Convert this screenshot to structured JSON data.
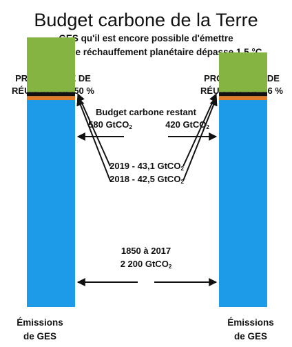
{
  "header": {
    "title": "Budget carbone de la Terre",
    "subtitle_line1": "GES qu'il est encore possible d'émettre",
    "subtitle_line2": "sans que le réchauffement planétaire dépasse 1,5 °C"
  },
  "colors": {
    "historic": "#1E9BE8",
    "year_2018": "#E07B2A",
    "year_2019": "#111111",
    "remaining": "#86B443"
  },
  "chart_data": {
    "type": "bar",
    "stacked": true,
    "unit": "GtCO2",
    "categories": [
      "PROBABILITÉ DE RÉUSSITE DE 50 %",
      "PROBABILITÉ DE RÉUSSITE DE 66 %"
    ],
    "category_lines": [
      [
        "PROBABILITÉ DE",
        "RÉUSSITE DE 50 %"
      ],
      [
        "PROBABILITÉ DE",
        "RÉUSSITE DE 66 %"
      ]
    ],
    "x_labels": [
      [
        "Émissions",
        "de GES"
      ],
      [
        "Émissions",
        "de GES"
      ]
    ],
    "series": [
      {
        "name": "1850 à 2017",
        "values": [
          2200,
          2200
        ]
      },
      {
        "name": "2018",
        "values": [
          42.5,
          42.5
        ]
      },
      {
        "name": "2019",
        "values": [
          43.1,
          43.1
        ]
      },
      {
        "name": "Budget carbone restant",
        "values": [
          580,
          420
        ]
      }
    ],
    "annotations": {
      "remaining_title": "Budget carbone restant",
      "remaining_left": "580 GtCO",
      "remaining_right": "420 GtCO",
      "line_2019": "2019 - 43,1 GtCO",
      "line_2018": "2018 - 42,5 GtCO",
      "historic_period": "1850 à 2017",
      "historic_value": "2 200 GtCO",
      "subscript": "2"
    }
  }
}
